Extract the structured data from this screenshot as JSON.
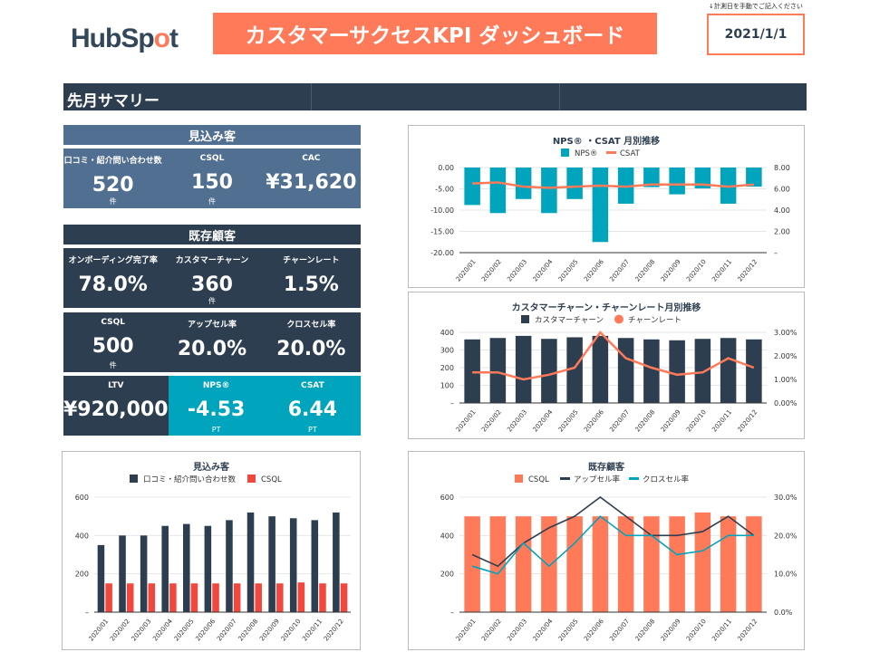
{
  "header": {
    "logo": "HubSpot",
    "title": "カスタマーサクセスKPI ダッシュボード",
    "note": "↓計測日を手動でご記入ください",
    "date": "2021/1/1"
  },
  "summary": {
    "title": "先月サマリー"
  },
  "colors": {
    "orange": "#FF7A59",
    "navy": "#2D3E50",
    "slate": "#516F90",
    "teal": "#00A4BD",
    "red": "#F2473C"
  },
  "prospects": {
    "title": "見込み客",
    "items": [
      {
        "label": "口コミ・紹介問い合わせ数",
        "value": "520",
        "unit": "件"
      },
      {
        "label": "CSQL",
        "value": "150",
        "unit": "件"
      },
      {
        "label": "CAC",
        "value": "¥31,620",
        "unit": ""
      }
    ]
  },
  "existing": {
    "title": "既存顧客",
    "rows": [
      [
        {
          "label": "オンボーディング完了率",
          "value": "78.0%",
          "unit": ""
        },
        {
          "label": "カスタマーチャーン",
          "value": "360",
          "unit": "件"
        },
        {
          "label": "チャーンレート",
          "value": "1.5%",
          "unit": ""
        }
      ],
      [
        {
          "label": "CSQL",
          "value": "500",
          "unit": "件"
        },
        {
          "label": "アップセル率",
          "value": "20.0%",
          "unit": ""
        },
        {
          "label": "クロスセル率",
          "value": "20.0%",
          "unit": ""
        }
      ],
      [
        {
          "label": "LTV",
          "value": "¥920,000",
          "unit": ""
        },
        {
          "label": "NPS®",
          "value": "-4.53",
          "unit": "PT"
        },
        {
          "label": "CSAT",
          "value": "6.44",
          "unit": "PT"
        }
      ]
    ]
  },
  "chart_data": [
    {
      "id": "nps",
      "type": "bar",
      "title": "NPS® ・CSAT 月別推移",
      "categories": [
        "2020/01",
        "2020/02",
        "2020/03",
        "2020/04",
        "2020/05",
        "2020/06",
        "2020/07",
        "2020/08",
        "2020/09",
        "2020/10",
        "2020/11",
        "2020/12"
      ],
      "left_axis": {
        "min": -20,
        "max": 0,
        "ticks": [
          [
            0,
            "0.00"
          ],
          [
            -5,
            "-5.00"
          ],
          [
            -10,
            "-10.00"
          ],
          [
            -15,
            "-15.00"
          ],
          [
            -20,
            "-20.00"
          ]
        ]
      },
      "right_axis": {
        "min": 0,
        "max": 8,
        "ticks": [
          [
            8,
            "8.00"
          ],
          [
            6,
            "6.00"
          ],
          [
            4,
            "4.00"
          ],
          [
            2,
            "2.00"
          ],
          [
            0,
            "–"
          ]
        ]
      },
      "series": [
        {
          "name": "NPS®",
          "kind": "bar",
          "axis": "left",
          "color": "#00A4BD",
          "values": [
            -8.8,
            -10.7,
            -7.4,
            -10.7,
            -7.4,
            -17.5,
            -8.5,
            -4.6,
            -6.3,
            -4.9,
            -8.5,
            -4.5
          ]
        },
        {
          "name": "CSAT",
          "kind": "line",
          "axis": "right",
          "color": "#FF7A59",
          "values": [
            6.5,
            6.6,
            6.2,
            6.1,
            6.2,
            6.3,
            6.2,
            6.4,
            6.4,
            6.4,
            6.2,
            6.4
          ]
        }
      ]
    },
    {
      "id": "churn",
      "type": "bar",
      "title": "カスタマーチャーン・チャーンレート月別推移",
      "categories": [
        "2020/01",
        "2020/02",
        "2020/03",
        "2020/04",
        "2020/05",
        "2020/06",
        "2020/07",
        "2020/08",
        "2020/09",
        "2020/10",
        "2020/11",
        "2020/12"
      ],
      "left_axis": {
        "min": 0,
        "max": 400,
        "ticks": [
          [
            400,
            "400"
          ],
          [
            300,
            "300"
          ],
          [
            200,
            "200"
          ],
          [
            100,
            "100"
          ],
          [
            0,
            "–"
          ]
        ]
      },
      "right_axis": {
        "min": 0,
        "max": 3,
        "ticks": [
          [
            3,
            "3.00%"
          ],
          [
            2,
            "2.00%"
          ],
          [
            1,
            "1.00%"
          ],
          [
            0,
            "0.00%"
          ]
        ]
      },
      "series": [
        {
          "name": "カスタマーチャーン",
          "kind": "bar",
          "axis": "left",
          "color": "#2D3E50",
          "values": [
            360,
            368,
            380,
            363,
            372,
            380,
            368,
            360,
            355,
            363,
            368,
            360
          ]
        },
        {
          "name": "チャーンレート",
          "kind": "line",
          "axis": "right",
          "color": "#FF7A59",
          "marker": "circle",
          "values": [
            1.3,
            1.3,
            1.0,
            1.2,
            1.5,
            3.0,
            1.9,
            1.5,
            1.2,
            1.3,
            1.9,
            1.5
          ]
        }
      ]
    },
    {
      "id": "prospect",
      "type": "bar",
      "title": "見込み客",
      "categories": [
        "2020/01",
        "2020/02",
        "2020/03",
        "2020/04",
        "2020/05",
        "2020/06",
        "2020/07",
        "2020/08",
        "2020/09",
        "2020/10",
        "2020/11",
        "2020/12"
      ],
      "left_axis": {
        "min": 0,
        "max": 600,
        "ticks": [
          [
            600,
            "600"
          ],
          [
            400,
            "400"
          ],
          [
            200,
            "200"
          ],
          [
            0,
            "–"
          ]
        ]
      },
      "series": [
        {
          "name": "口コミ・紹介問い合わせ数",
          "kind": "bar",
          "axis": "left",
          "color": "#2D3E50",
          "values": [
            350,
            400,
            400,
            450,
            460,
            450,
            480,
            520,
            500,
            490,
            480,
            520
          ]
        },
        {
          "name": "CSQL",
          "kind": "bar",
          "axis": "left",
          "color": "#F2473C",
          "values": [
            150,
            150,
            150,
            150,
            150,
            150,
            150,
            150,
            150,
            155,
            150,
            150
          ]
        }
      ]
    },
    {
      "id": "existing",
      "type": "bar",
      "title": "既存顧客",
      "categories": [
        "2020/01",
        "2020/02",
        "2020/03",
        "2020/04",
        "2020/05",
        "2020/06",
        "2020/07",
        "2020/08",
        "2020/09",
        "2020/10",
        "2020/11",
        "2020/12"
      ],
      "left_axis": {
        "min": 0,
        "max": 600,
        "ticks": [
          [
            600,
            "600"
          ],
          [
            400,
            "400"
          ],
          [
            200,
            "200"
          ],
          [
            0,
            "–"
          ]
        ]
      },
      "right_axis": {
        "min": 0,
        "max": 30,
        "ticks": [
          [
            30,
            "30.0%"
          ],
          [
            20,
            "20.0%"
          ],
          [
            10,
            "10.0%"
          ],
          [
            0,
            "0.0%"
          ]
        ]
      },
      "series": [
        {
          "name": "CSQL",
          "kind": "bar",
          "axis": "left",
          "color": "#FF7A59",
          "values": [
            500,
            500,
            500,
            500,
            500,
            500,
            500,
            500,
            500,
            520,
            500,
            500
          ]
        },
        {
          "name": "アップセル率",
          "kind": "line",
          "axis": "right",
          "color": "#2D3E50",
          "values": [
            15,
            12,
            18,
            22,
            25,
            30,
            25,
            20,
            20,
            21,
            25,
            20
          ]
        },
        {
          "name": "クロスセル率",
          "kind": "line",
          "axis": "right",
          "color": "#00A4BD",
          "values": [
            12,
            10,
            18,
            12,
            18,
            25,
            20,
            20,
            15,
            16,
            20,
            20
          ]
        }
      ]
    }
  ]
}
